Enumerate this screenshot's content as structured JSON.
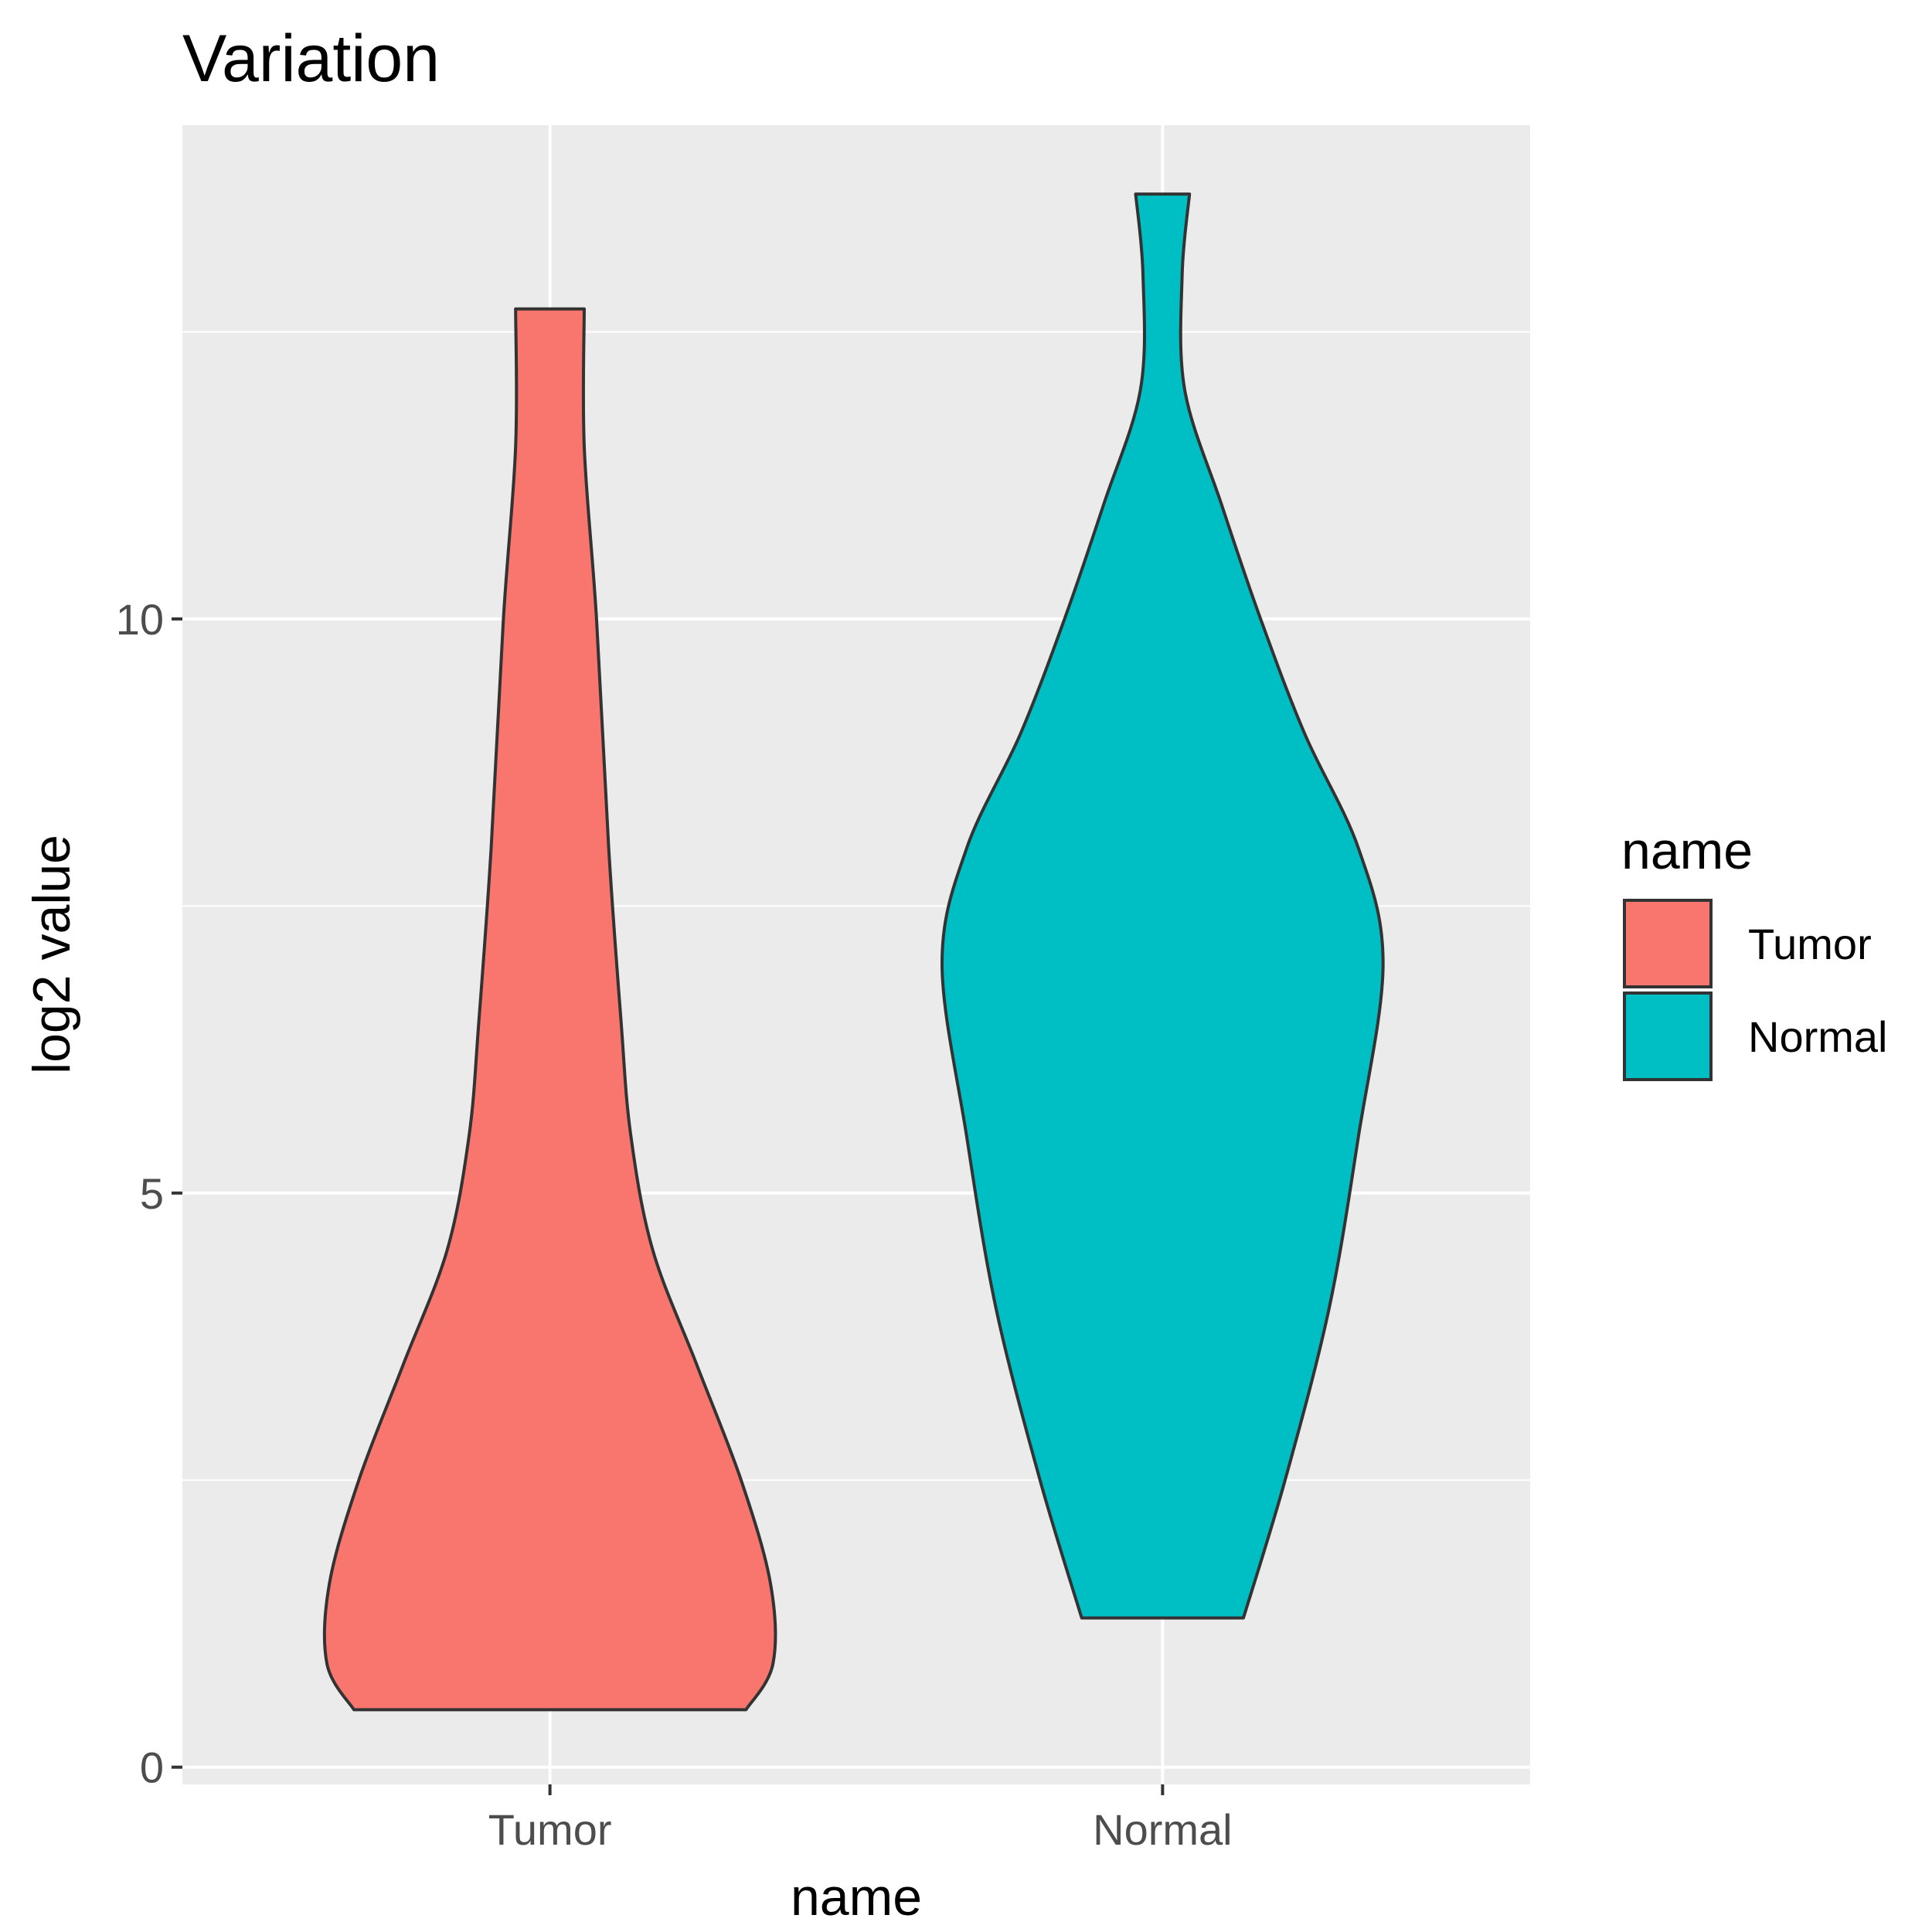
{
  "chart_data": {
    "type": "violin",
    "title": "Variation",
    "xlabel": "name",
    "ylabel": "log2 value",
    "categories": [
      "Tumor",
      "Normal"
    ],
    "y_ticks": [
      "0",
      "5",
      "10"
    ],
    "ylim": [
      -0.15,
      14.3
    ],
    "grid": true,
    "panel_background": "#ebebeb",
    "legend": {
      "title": "name",
      "position": "right",
      "entries": [
        {
          "label": "Tumor",
          "color": "#f8766d"
        },
        {
          "label": "Normal",
          "color": "#00bfc4"
        }
      ]
    },
    "series": [
      {
        "name": "Tumor",
        "color": "#f8766d",
        "ymin": 0.5,
        "ymax": 12.7,
        "density": [
          {
            "y": 0.5,
            "w": 0.8
          },
          {
            "y": 0.9,
            "w": 0.91
          },
          {
            "y": 1.6,
            "w": 0.9
          },
          {
            "y": 2.5,
            "w": 0.78
          },
          {
            "y": 3.5,
            "w": 0.6
          },
          {
            "y": 4.5,
            "w": 0.42
          },
          {
            "y": 5.5,
            "w": 0.33
          },
          {
            "y": 6.5,
            "w": 0.29
          },
          {
            "y": 8.0,
            "w": 0.24
          },
          {
            "y": 10.0,
            "w": 0.19
          },
          {
            "y": 11.5,
            "w": 0.14
          },
          {
            "y": 12.7,
            "w": 0.14
          }
        ]
      },
      {
        "name": "Normal",
        "color": "#00bfc4",
        "ymin": 1.3,
        "ymax": 13.7,
        "density": [
          {
            "y": 1.3,
            "w": 0.33
          },
          {
            "y": 2.5,
            "w": 0.5
          },
          {
            "y": 4.0,
            "w": 0.68
          },
          {
            "y": 5.5,
            "w": 0.8
          },
          {
            "y": 7.0,
            "w": 0.9
          },
          {
            "y": 8.0,
            "w": 0.8
          },
          {
            "y": 9.0,
            "w": 0.58
          },
          {
            "y": 10.0,
            "w": 0.4
          },
          {
            "y": 11.0,
            "w": 0.24
          },
          {
            "y": 12.0,
            "w": 0.09
          },
          {
            "y": 13.0,
            "w": 0.08
          },
          {
            "y": 13.7,
            "w": 0.11
          }
        ]
      }
    ]
  }
}
